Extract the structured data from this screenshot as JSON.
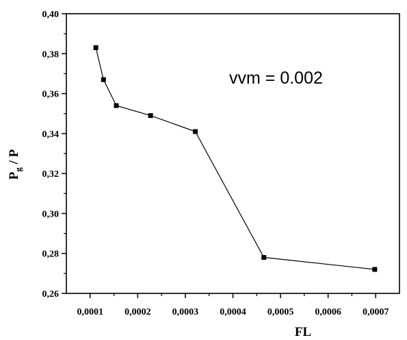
{
  "chart_data": {
    "type": "line",
    "xlabel": "FL",
    "ylabel_main": "P",
    "ylabel_sub": "g",
    "ylabel_rest": " / P",
    "annotation": "vvm = 0.002",
    "xlim": [
      5e-05,
      0.00075
    ],
    "ylim": [
      0.26,
      0.4
    ],
    "x_ticks": [
      0.0001,
      0.0002,
      0.0003,
      0.0004,
      0.0005,
      0.0006,
      0.0007
    ],
    "x_tick_labels": [
      "0,0001",
      "0,0002",
      "0,0003",
      "0,0004",
      "0,0005",
      "0,0006",
      "0,0007"
    ],
    "y_ticks": [
      0.26,
      0.28,
      0.3,
      0.32,
      0.34,
      0.36,
      0.38,
      0.4
    ],
    "y_tick_labels": [
      "0,26",
      "0,28",
      "0,30",
      "0,32",
      "0,34",
      "0,36",
      "0,38",
      "0,40"
    ],
    "grid": false,
    "marker": "square",
    "series": [
      {
        "x": [
          0.000112,
          0.000128,
          0.000155,
          0.000227,
          0.000321,
          0.000465,
          0.000698
        ],
        "y": [
          0.383,
          0.367,
          0.354,
          0.349,
          0.341,
          0.278,
          0.272
        ]
      }
    ]
  }
}
